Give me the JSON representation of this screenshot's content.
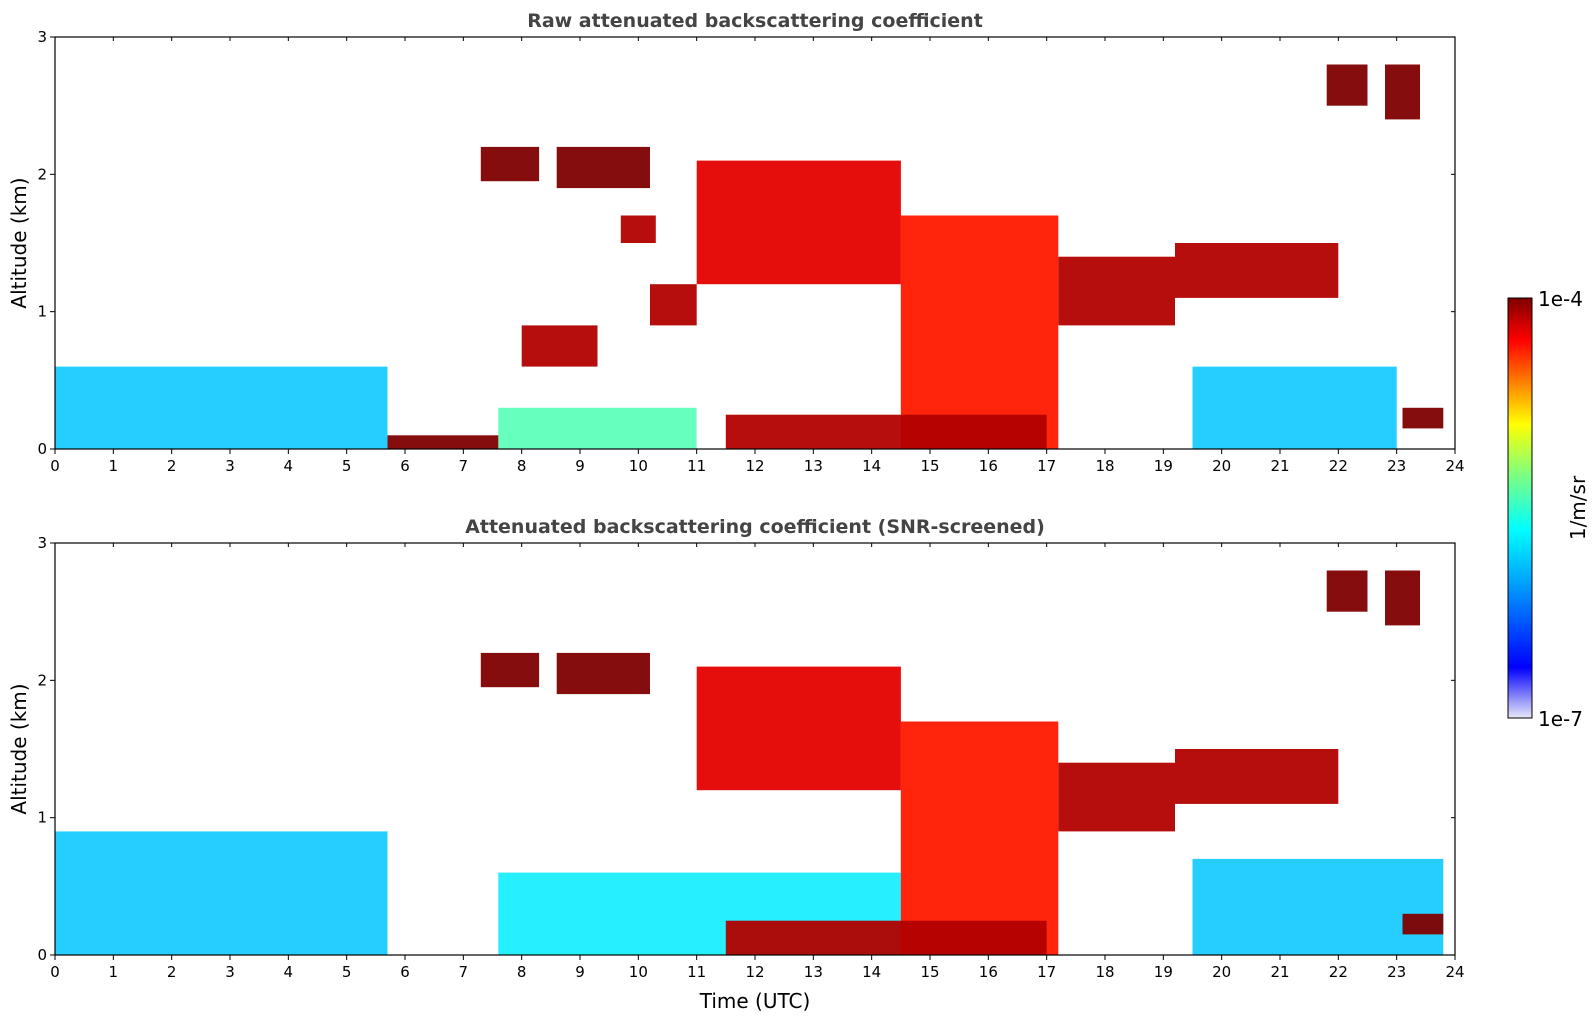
{
  "chart_data": [
    {
      "type": "heatmap",
      "title": "Raw attenuated backscattering coefficient",
      "xlabel": "",
      "ylabel": "Altitude (km)",
      "xlim": [
        0,
        24
      ],
      "ylim": [
        0,
        3
      ],
      "xticks": [
        "0",
        "1",
        "2",
        "3",
        "4",
        "5",
        "6",
        "7",
        "8",
        "9",
        "10",
        "11",
        "12",
        "13",
        "14",
        "15",
        "16",
        "17",
        "18",
        "19",
        "20",
        "21",
        "22",
        "23",
        "24"
      ],
      "yticks": [
        "0",
        "1",
        "2",
        "3"
      ],
      "features": [
        {
          "kind": "boundary_layer",
          "x": [
            0,
            5.7
          ],
          "y": [
            0,
            0.6
          ],
          "level": 0.3
        },
        {
          "kind": "aerosol_layer",
          "x": [
            7.6,
            11
          ],
          "y": [
            0,
            0.3
          ],
          "level": 0.45
        },
        {
          "kind": "boundary_layer",
          "x": [
            19.5,
            23.0
          ],
          "y": [
            0,
            0.6
          ],
          "level": 0.3
        },
        {
          "kind": "cloud",
          "x": [
            5.7,
            7.6
          ],
          "y": [
            0,
            0.1
          ],
          "level": 1.0
        },
        {
          "kind": "cloud",
          "x": [
            7.3,
            8.3
          ],
          "y": [
            1.95,
            2.2
          ],
          "level": 1.0
        },
        {
          "kind": "cloud",
          "x": [
            8.6,
            10.2
          ],
          "y": [
            1.9,
            2.2
          ],
          "level": 1.0
        },
        {
          "kind": "cloud",
          "x": [
            9.7,
            10.3
          ],
          "y": [
            1.5,
            1.7
          ],
          "level": 0.95
        },
        {
          "kind": "cloud",
          "x": [
            8.0,
            9.3
          ],
          "y": [
            0.6,
            0.9
          ],
          "level": 0.95
        },
        {
          "kind": "cloud",
          "x": [
            10.2,
            11.0
          ],
          "y": [
            0.9,
            1.2
          ],
          "level": 0.95
        },
        {
          "kind": "cloud",
          "x": [
            11.0,
            14.5
          ],
          "y": [
            1.2,
            2.1
          ],
          "level": 0.9
        },
        {
          "kind": "cloud",
          "x": [
            14.5,
            17.2
          ],
          "y": [
            0,
            1.7
          ],
          "level": 0.85
        },
        {
          "kind": "cloud",
          "x": [
            17.2,
            19.2
          ],
          "y": [
            0.9,
            1.4
          ],
          "level": 0.95
        },
        {
          "kind": "cloud",
          "x": [
            19.2,
            22.0
          ],
          "y": [
            1.1,
            1.5
          ],
          "level": 0.95
        },
        {
          "kind": "cloud",
          "x": [
            21.8,
            22.5
          ],
          "y": [
            2.5,
            2.8
          ],
          "level": 1.0
        },
        {
          "kind": "cloud",
          "x": [
            22.8,
            23.4
          ],
          "y": [
            2.4,
            2.8
          ],
          "level": 1.0
        },
        {
          "kind": "cloud",
          "x": [
            23.1,
            23.8
          ],
          "y": [
            0.15,
            0.3
          ],
          "level": 1.0
        },
        {
          "kind": "drizzle_layer",
          "x": [
            11.5,
            17.0
          ],
          "y": [
            0,
            0.25
          ],
          "level": 0.95
        }
      ]
    },
    {
      "type": "heatmap",
      "title": "Attenuated backscattering coefficient (SNR-screened)",
      "xlabel": "Time (UTC)",
      "ylabel": "Altitude (km)",
      "xlim": [
        0,
        24
      ],
      "ylim": [
        0,
        3
      ],
      "xticks": [
        "0",
        "1",
        "2",
        "3",
        "4",
        "5",
        "6",
        "7",
        "8",
        "9",
        "10",
        "11",
        "12",
        "13",
        "14",
        "15",
        "16",
        "17",
        "18",
        "19",
        "20",
        "21",
        "22",
        "23",
        "24"
      ],
      "yticks": [
        "0",
        "1",
        "2",
        "3"
      ],
      "features": [
        {
          "kind": "boundary_layer",
          "x": [
            0,
            5.7
          ],
          "y": [
            0,
            0.9
          ],
          "level": 0.3
        },
        {
          "kind": "aerosol_layer",
          "x": [
            7.6,
            14.5
          ],
          "y": [
            0,
            0.6
          ],
          "level": 0.35
        },
        {
          "kind": "boundary_layer",
          "x": [
            19.5,
            23.8
          ],
          "y": [
            0,
            0.7
          ],
          "level": 0.3
        },
        {
          "kind": "cloud",
          "x": [
            7.3,
            8.3
          ],
          "y": [
            1.95,
            2.2
          ],
          "level": 1.0
        },
        {
          "kind": "cloud",
          "x": [
            8.6,
            10.2
          ],
          "y": [
            1.9,
            2.2
          ],
          "level": 1.0
        },
        {
          "kind": "cloud",
          "x": [
            11.0,
            14.5
          ],
          "y": [
            1.2,
            2.1
          ],
          "level": 0.9
        },
        {
          "kind": "cloud",
          "x": [
            14.5,
            17.2
          ],
          "y": [
            0,
            1.7
          ],
          "level": 0.85
        },
        {
          "kind": "cloud",
          "x": [
            17.2,
            19.2
          ],
          "y": [
            0.9,
            1.4
          ],
          "level": 0.95
        },
        {
          "kind": "cloud",
          "x": [
            19.2,
            22.0
          ],
          "y": [
            1.1,
            1.5
          ],
          "level": 0.95
        },
        {
          "kind": "cloud",
          "x": [
            21.8,
            22.5
          ],
          "y": [
            2.5,
            2.8
          ],
          "level": 1.0
        },
        {
          "kind": "cloud",
          "x": [
            22.8,
            23.4
          ],
          "y": [
            2.4,
            2.8
          ],
          "level": 1.0
        },
        {
          "kind": "cloud",
          "x": [
            23.1,
            23.8
          ],
          "y": [
            0.15,
            0.3
          ],
          "level": 1.0
        },
        {
          "kind": "drizzle_layer",
          "x": [
            11.5,
            17.0
          ],
          "y": [
            0,
            0.25
          ],
          "level": 0.95
        }
      ]
    }
  ],
  "colorbar": {
    "label": "1/m/sr",
    "max_label": "1e-4",
    "min_label": "1e-7",
    "scale": "log",
    "colormap": "jet",
    "colors": [
      "#e8e8f8",
      "#0000ff",
      "#00a0ff",
      "#00ffff",
      "#7fff7f",
      "#ffff00",
      "#ff7f00",
      "#ff0000",
      "#7f0000"
    ]
  }
}
